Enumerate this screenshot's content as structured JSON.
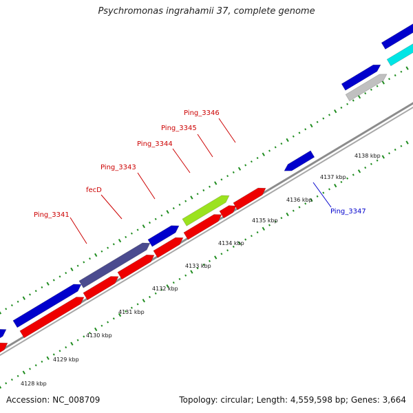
{
  "title": "Psychromonas ingrahamii 37, complete genome",
  "footer": {
    "accession": "Accession: NC_008709",
    "topology": "Topology: circular; Length: 4,559,598 bp; Genes: 3,664"
  },
  "colors": {
    "background": "#ffffff",
    "backbone": "#8c8c8c",
    "tick": "#1f8c1f",
    "forward_gene": "#0000cc",
    "reverse_gene": "#ee0000",
    "fecD_gene": "#4b4b8f",
    "highlight_gene": "#9be21f",
    "cyan_gene": "#00e5e5",
    "gray_gene": "#c0c0c0",
    "label_red": "#cc0000",
    "label_blue": "#0000cc"
  },
  "scale_labels": [
    "4128 kbp",
    "4129 kbp",
    "4130 kbp",
    "4131 kbp",
    "4132 kbp",
    "4133 kbp",
    "4134 kbp",
    "4135 kbp",
    "4136 kbp",
    "4137 kbp",
    "4138 kbp"
  ],
  "gene_labels": [
    {
      "name": "Ping_3341",
      "strand": "forward"
    },
    {
      "name": "fecD",
      "strand": "forward"
    },
    {
      "name": "Ping_3343",
      "strand": "forward"
    },
    {
      "name": "Ping_3344",
      "strand": "forward"
    },
    {
      "name": "Ping_3345",
      "strand": "forward"
    },
    {
      "name": "Ping_3346",
      "strand": "forward"
    },
    {
      "name": "Ping_3347",
      "strand": "reverse"
    }
  ]
}
